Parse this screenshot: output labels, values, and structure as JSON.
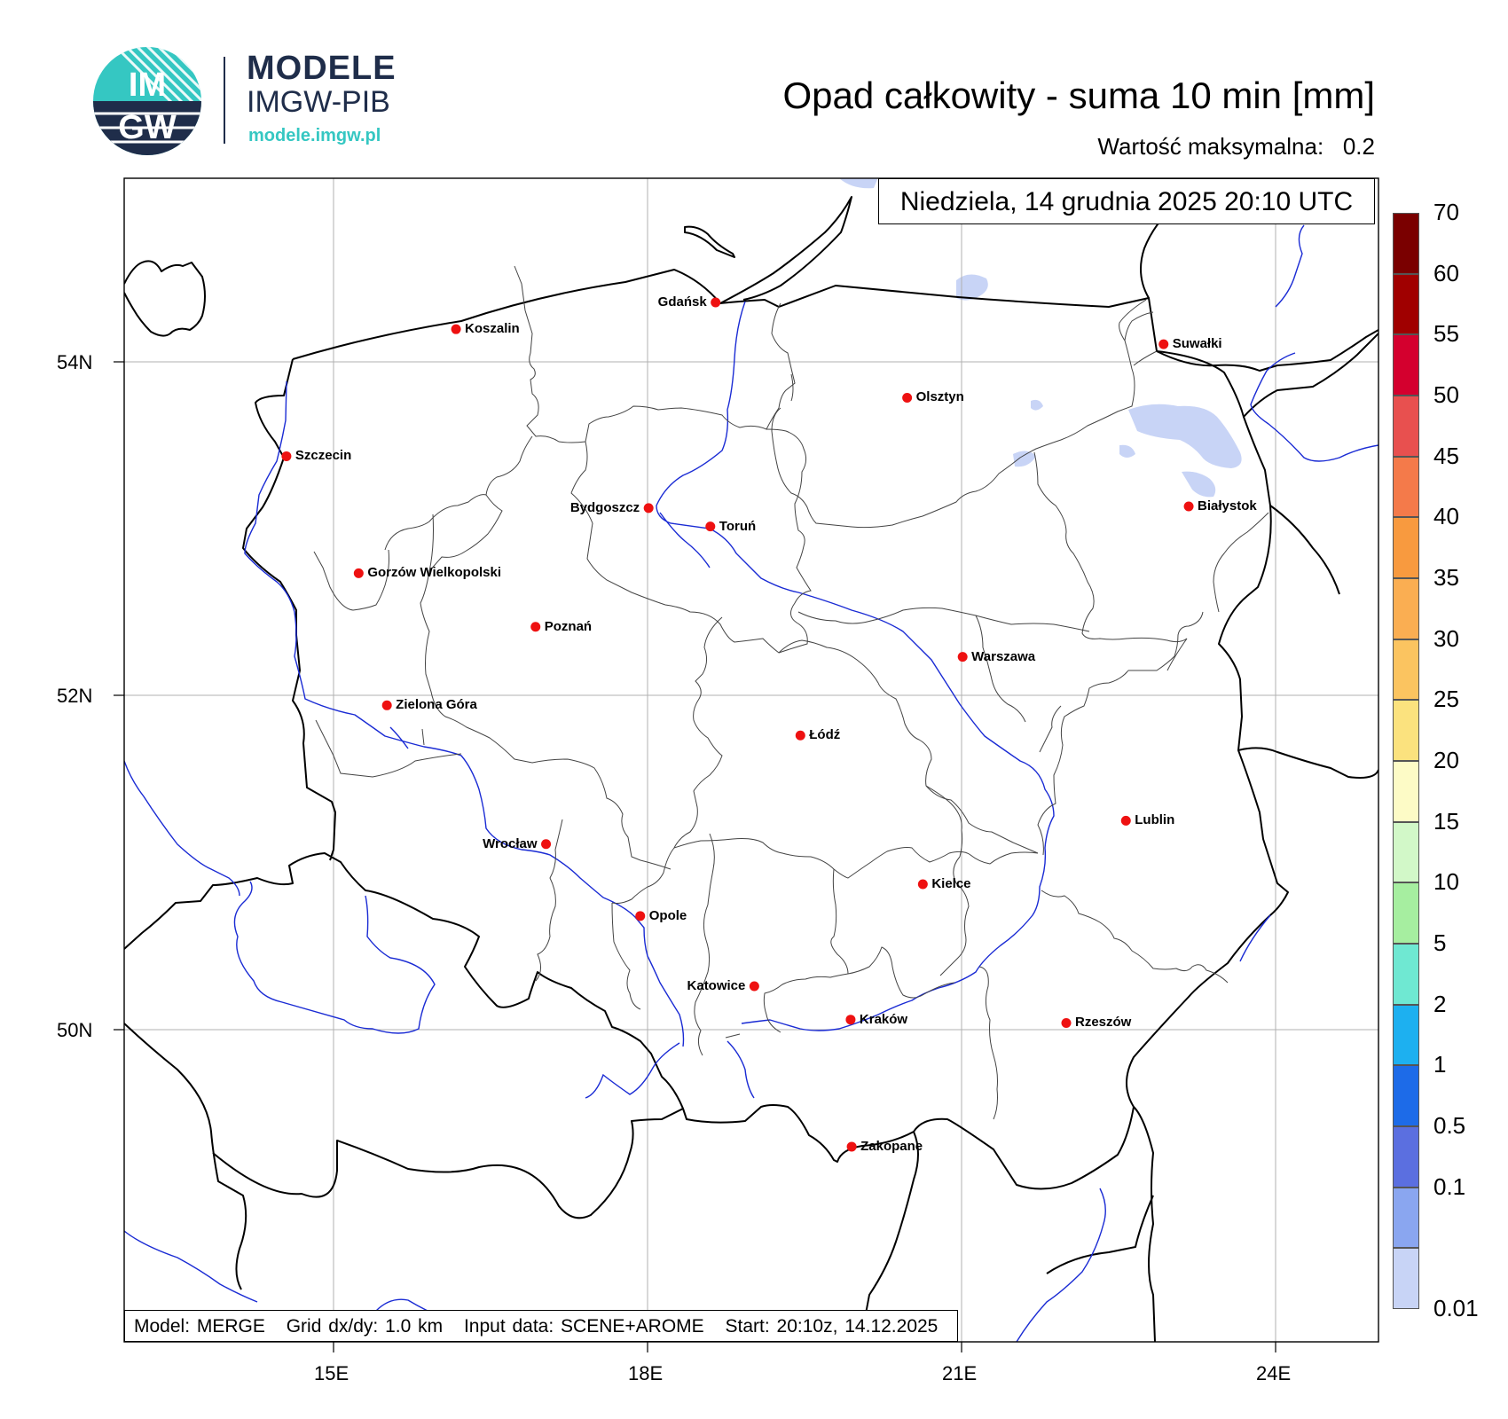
{
  "header": {
    "logo_letters_top": "IM",
    "logo_letters_bottom": "GW",
    "logo_title": "MODELE",
    "logo_subtitle": "IMGW-PIB",
    "logo_url": "modele.imgw.pl",
    "title": "Opad całkowity - suma 10 min [mm]",
    "max_label": "Wartość maksymalna:",
    "max_value": "0.2"
  },
  "map": {
    "date": "Niedziela, 14 grudnia 2025 20:10 UTC",
    "footer": {
      "model": "Model: MERGE",
      "grid": "Grid dx/dy: 1.0 km",
      "input": "Input data: SCENE+AROME",
      "start": "Start: 20:10z, 14.12.2025"
    },
    "lat_labels": [
      "54N",
      "52N",
      "50N"
    ],
    "lon_labels": [
      "15E",
      "18E",
      "21E",
      "24E"
    ],
    "colors": {
      "point": "#ee1111",
      "border": "#000000",
      "river": "#1a2bd4",
      "voivodeship": "#444444",
      "precip": "#c8d4f6",
      "grid": "#b0b0b0"
    },
    "cities": [
      {
        "name": "Gdańsk",
        "lat": 54.35,
        "lon": 18.65
      },
      {
        "name": "Koszalin",
        "lat": 54.19,
        "lon": 16.17
      },
      {
        "name": "Suwałki",
        "lat": 54.1,
        "lon": 22.93
      },
      {
        "name": "Olsztyn",
        "lat": 53.78,
        "lon": 20.48
      },
      {
        "name": "Szczecin",
        "lat": 53.43,
        "lon": 14.55
      },
      {
        "name": "Białystok",
        "lat": 53.13,
        "lon": 23.17
      },
      {
        "name": "Bydgoszcz",
        "lat": 53.12,
        "lon": 18.01
      },
      {
        "name": "Toruń",
        "lat": 53.01,
        "lon": 18.6
      },
      {
        "name": "Gorzów Wielkopolski",
        "lat": 52.73,
        "lon": 15.24
      },
      {
        "name": "Poznań",
        "lat": 52.41,
        "lon": 16.93
      },
      {
        "name": "Warszawa",
        "lat": 52.23,
        "lon": 21.01
      },
      {
        "name": "Zielona Góra",
        "lat": 51.94,
        "lon": 15.51
      },
      {
        "name": "Łódź",
        "lat": 51.76,
        "lon": 19.46
      },
      {
        "name": "Lublin",
        "lat": 51.25,
        "lon": 22.57
      },
      {
        "name": "Wrocław",
        "lat": 51.11,
        "lon": 17.03
      },
      {
        "name": "Kielce",
        "lat": 50.87,
        "lon": 20.63
      },
      {
        "name": "Opole",
        "lat": 50.68,
        "lon": 17.93
      },
      {
        "name": "Katowice",
        "lat": 50.26,
        "lon": 19.02
      },
      {
        "name": "Rzeszów",
        "lat": 50.04,
        "lon": 22.0
      },
      {
        "name": "Kraków",
        "lat": 50.06,
        "lon": 19.94
      },
      {
        "name": "Zakopane",
        "lat": 49.3,
        "lon": 19.95
      }
    ]
  },
  "colorbar": {
    "labels": [
      "70",
      "60",
      "55",
      "50",
      "45",
      "40",
      "35",
      "30",
      "25",
      "20",
      "15",
      "10",
      "5",
      "2",
      "1",
      "0.5",
      "0.1",
      "0.01"
    ],
    "colors": [
      "#7a0000",
      "#a00000",
      "#d4002e",
      "#e8504f",
      "#f47a4a",
      "#f89a3f",
      "#faae52",
      "#fbc460",
      "#fbe27e",
      "#fdfbc6",
      "#d2f8c8",
      "#a6eea0",
      "#6fe8d2",
      "#1db0f0",
      "#1d6be8",
      "#5b6fe0",
      "#8aa6f0",
      "#c8d4f6"
    ]
  }
}
